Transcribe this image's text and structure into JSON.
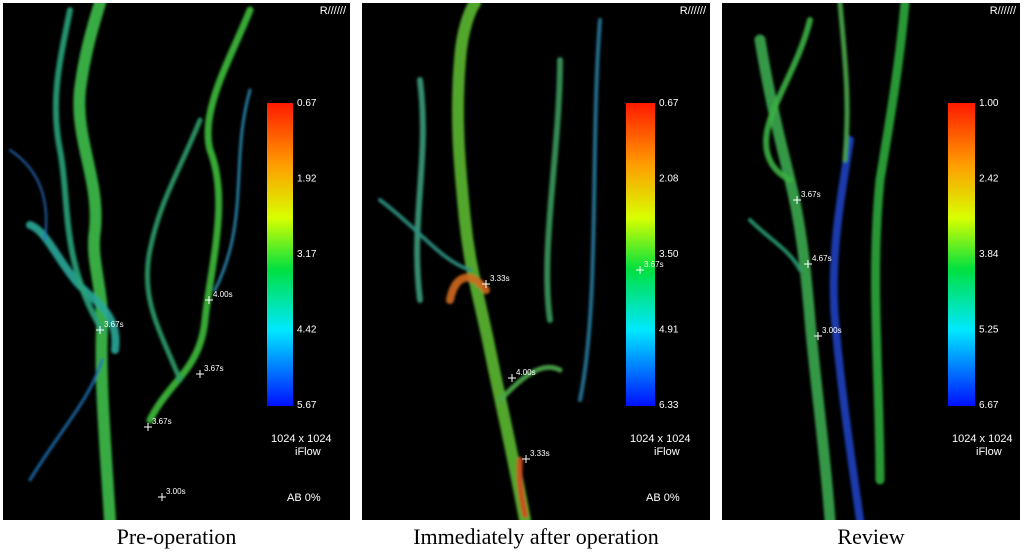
{
  "panels": [
    {
      "corner_label": "R//////",
      "colorbar_labels": [
        "0.67",
        "1.92",
        "3.17",
        "4.42",
        "5.67"
      ],
      "matrix": "1024 x 1024",
      "mode": "iFlow",
      "ab": "AB 0%",
      "markers": [
        "3.67s",
        "4.00s",
        "3.67s",
        "3.67s",
        "3.00s"
      ],
      "caption": "Pre-operation"
    },
    {
      "corner_label": "R//////",
      "colorbar_labels": [
        "0.67",
        "2.08",
        "3.50",
        "4.91",
        "6.33"
      ],
      "matrix": "1024 x 1024",
      "mode": "iFlow",
      "ab": "AB 0%",
      "markers": [
        "3.33s",
        "4.00s",
        "3.33s",
        "3.67s"
      ],
      "caption": "Immediately after operation"
    },
    {
      "corner_label": "R//////",
      "colorbar_labels": [
        "1.00",
        "2.42",
        "3.84",
        "5.25",
        "6.67"
      ],
      "matrix": "1024 x 1024",
      "mode": "iFlow",
      "markers": [
        "3.67s",
        "4.67s",
        "3.00s"
      ],
      "caption": "Review"
    }
  ]
}
